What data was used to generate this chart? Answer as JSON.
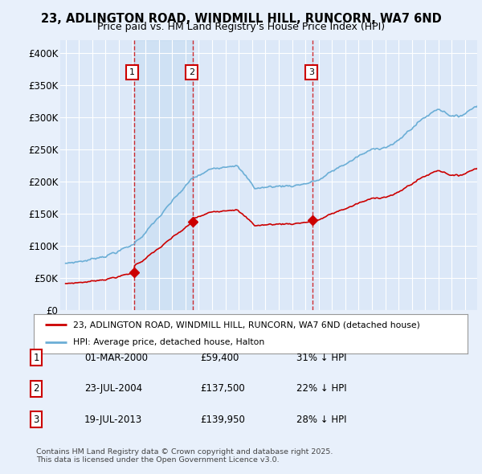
{
  "title_line1": "23, ADLINGTON ROAD, WINDMILL HILL, RUNCORN, WA7 6ND",
  "title_line2": "Price paid vs. HM Land Registry's House Price Index (HPI)",
  "background_color": "#e8f0fb",
  "plot_bg_color": "#dce8f8",
  "grid_color": "#ffffff",
  "shaded_color": "#c8dcf0",
  "legend_line1": "23, ADLINGTON ROAD, WINDMILL HILL, RUNCORN, WA7 6ND (detached house)",
  "legend_line2": "HPI: Average price, detached house, Halton",
  "table_rows": [
    [
      "1",
      "01-MAR-2000",
      "£59,400",
      "31% ↓ HPI"
    ],
    [
      "2",
      "23-JUL-2004",
      "£137,500",
      "22% ↓ HPI"
    ],
    [
      "3",
      "19-JUL-2013",
      "£139,950",
      "28% ↓ HPI"
    ]
  ],
  "footer": "Contains HM Land Registry data © Crown copyright and database right 2025.\nThis data is licensed under the Open Government Licence v3.0.",
  "hpi_color": "#6baed6",
  "price_color": "#cc0000",
  "dot_color": "#cc0000",
  "sale_times": [
    2000.17,
    2004.56,
    2013.55
  ],
  "sale_prices": [
    59400,
    137500,
    139950
  ],
  "sale_labels": [
    "1",
    "2",
    "3"
  ],
  "ylim": [
    0,
    420000
  ],
  "yticks": [
    0,
    50000,
    100000,
    150000,
    200000,
    250000,
    300000,
    350000,
    400000
  ],
  "ytick_labels": [
    "£0",
    "£50K",
    "£100K",
    "£150K",
    "£200K",
    "£250K",
    "£300K",
    "£350K",
    "£400K"
  ],
  "xlim_left": 1994.6,
  "xlim_right": 2025.9
}
